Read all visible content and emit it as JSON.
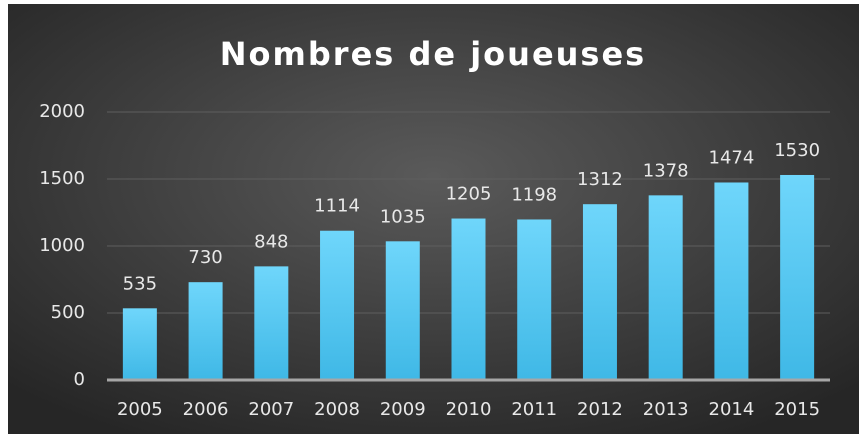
{
  "chart_data": {
    "type": "bar",
    "title": "Nombres de joueuses",
    "categories": [
      "2005",
      "2006",
      "2007",
      "2008",
      "2009",
      "2010",
      "2011",
      "2012",
      "2013",
      "2014",
      "2015"
    ],
    "values": [
      535,
      730,
      848,
      1114,
      1035,
      1205,
      1198,
      1312,
      1378,
      1474,
      1530
    ],
    "color": "#5ccdf5",
    "ylim": [
      0,
      2000
    ],
    "yticks": [
      0,
      500,
      1000,
      1500,
      2000
    ],
    "grid": true
  }
}
